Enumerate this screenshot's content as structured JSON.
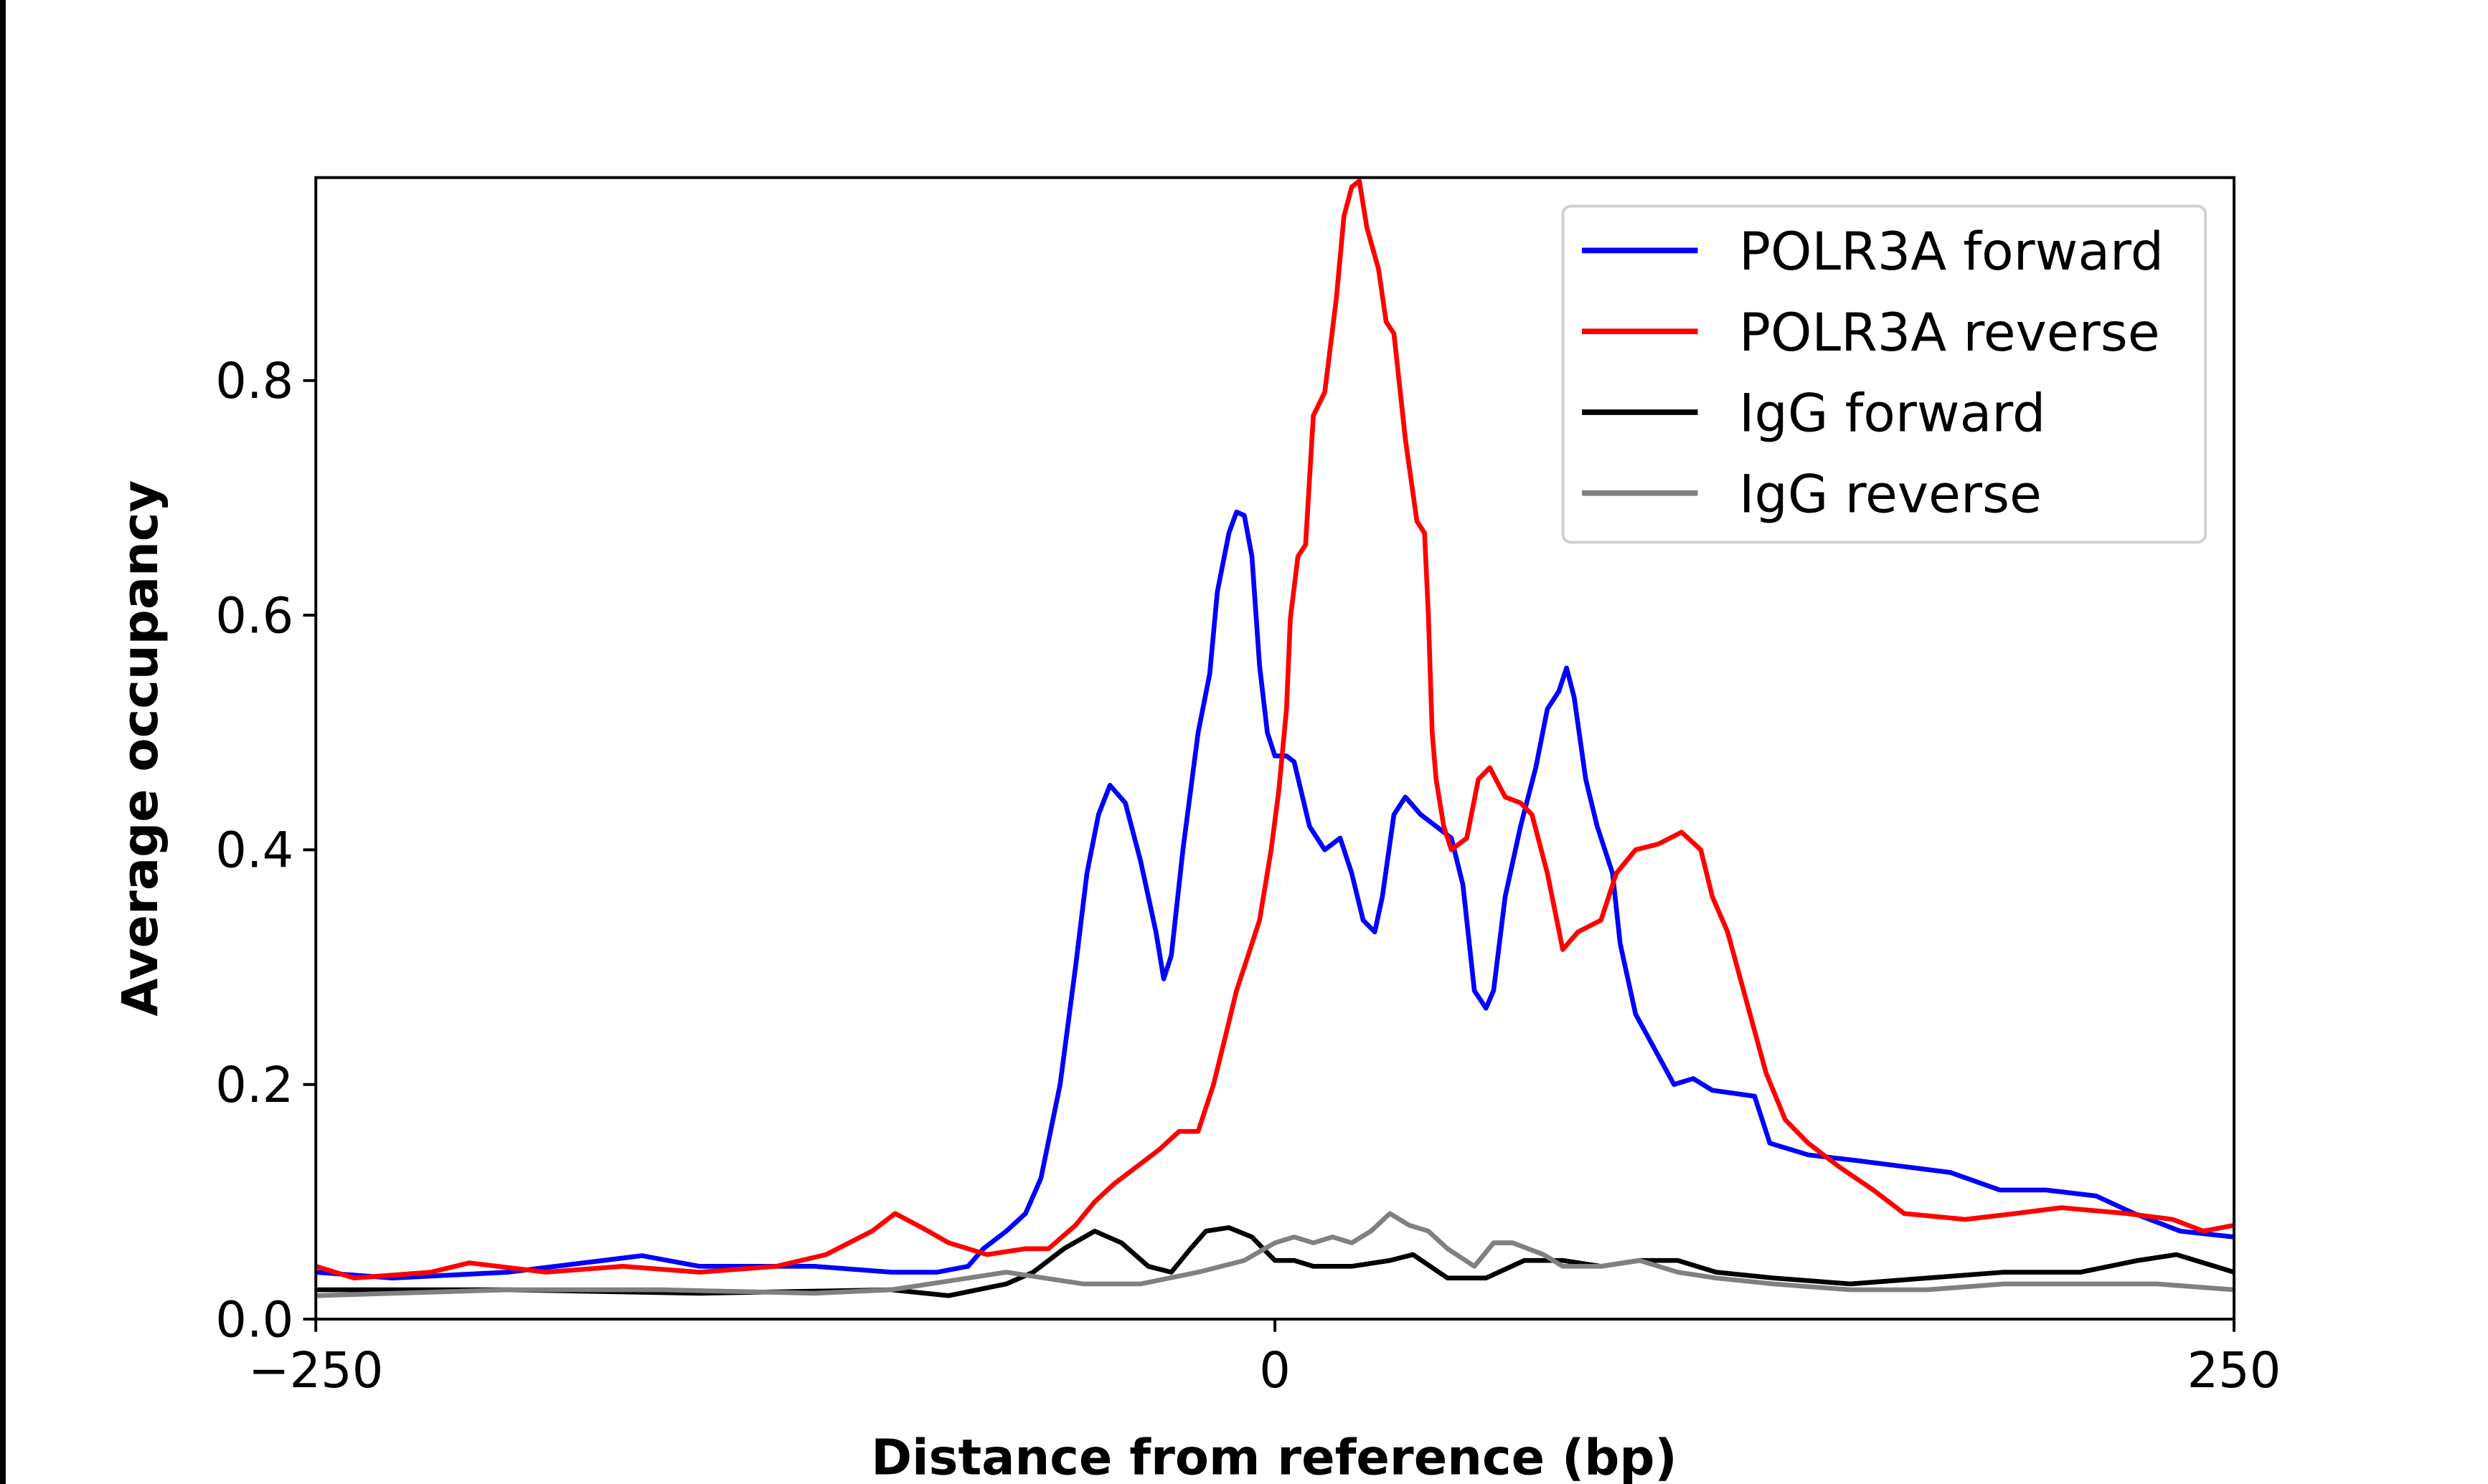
{
  "chart_data": {
    "type": "line",
    "title": "",
    "xlabel": "Distance from reference (bp)",
    "ylabel": "Average occupancy",
    "xlim": [
      -250,
      250
    ],
    "ylim": [
      0,
      0.973
    ],
    "xticks": [
      -250,
      0,
      250
    ],
    "xtick_labels": [
      "−250",
      "0",
      "250"
    ],
    "yticks": [
      0.0,
      0.2,
      0.4,
      0.6,
      0.8
    ],
    "ytick_labels": [
      "0.0",
      "0.2",
      "0.4",
      "0.6",
      "0.8"
    ],
    "grid": false,
    "legend_position": "top-right",
    "series": [
      {
        "name": "POLR3A forward",
        "color": "#0000ff",
        "x": [
          -250,
          -230,
          -200,
          -165,
          -150,
          -120,
          -100,
          -88,
          -80,
          -76,
          -70,
          -65,
          -61,
          -56,
          -52,
          -49,
          -46,
          -43,
          -39,
          -35,
          -31,
          -29,
          -27,
          -24,
          -20,
          -17,
          -15,
          -12,
          -10,
          -8,
          -6,
          -4,
          -2,
          0,
          3,
          5,
          9,
          13,
          17,
          20,
          23,
          26,
          28,
          31,
          34,
          38,
          42,
          46,
          49,
          52,
          55,
          57,
          60,
          64,
          68,
          71,
          74,
          76,
          78,
          81,
          84,
          88,
          90,
          94,
          99,
          104,
          109,
          114,
          125,
          129,
          139,
          152,
          164,
          176,
          189,
          201,
          214,
          224,
          236,
          250
        ],
        "y": [
          0.04,
          0.035,
          0.04,
          0.054,
          0.045,
          0.045,
          0.04,
          0.04,
          0.045,
          0.06,
          0.075,
          0.09,
          0.12,
          0.2,
          0.3,
          0.38,
          0.43,
          0.455,
          0.44,
          0.39,
          0.33,
          0.29,
          0.31,
          0.4,
          0.5,
          0.55,
          0.62,
          0.67,
          0.688,
          0.685,
          0.65,
          0.557,
          0.5,
          0.48,
          0.48,
          0.475,
          0.42,
          0.4,
          0.41,
          0.38,
          0.34,
          0.33,
          0.36,
          0.43,
          0.445,
          0.43,
          0.42,
          0.41,
          0.37,
          0.28,
          0.265,
          0.28,
          0.36,
          0.42,
          0.47,
          0.52,
          0.535,
          0.555,
          0.53,
          0.46,
          0.42,
          0.38,
          0.32,
          0.26,
          0.23,
          0.2,
          0.205,
          0.195,
          0.19,
          0.15,
          0.14,
          0.135,
          0.13,
          0.125,
          0.11,
          0.11,
          0.105,
          0.09,
          0.075,
          0.07
        ]
      },
      {
        "name": "POLR3A reverse",
        "color": "#ff0000",
        "x": [
          -250,
          -240,
          -220,
          -210,
          -190,
          -170,
          -150,
          -130,
          -117,
          -105,
          -99,
          -92,
          -85,
          -75,
          -65,
          -59,
          -52,
          -47,
          -42,
          -36,
          -30,
          -25,
          -20,
          -16,
          -13,
          -10,
          -7,
          -4,
          -1,
          1,
          3,
          4,
          6,
          8,
          10,
          13,
          16,
          18,
          20,
          22,
          24,
          27,
          29,
          31,
          34,
          37,
          39,
          40,
          41,
          42,
          44,
          46,
          50,
          53,
          56,
          60,
          64,
          67,
          71,
          75,
          79,
          85,
          89,
          94,
          100,
          106,
          111,
          114,
          118,
          123,
          128,
          133,
          139,
          147,
          156,
          164,
          180,
          193,
          205,
          222,
          234,
          242,
          250
        ],
        "y": [
          0.045,
          0.035,
          0.04,
          0.048,
          0.04,
          0.045,
          0.04,
          0.045,
          0.055,
          0.075,
          0.09,
          0.078,
          0.065,
          0.055,
          0.06,
          0.06,
          0.08,
          0.1,
          0.115,
          0.13,
          0.145,
          0.16,
          0.16,
          0.2,
          0.24,
          0.28,
          0.31,
          0.34,
          0.4,
          0.45,
          0.52,
          0.597,
          0.65,
          0.66,
          0.77,
          0.79,
          0.87,
          0.94,
          0.965,
          0.97,
          0.93,
          0.895,
          0.85,
          0.84,
          0.75,
          0.68,
          0.67,
          0.6,
          0.5,
          0.46,
          0.42,
          0.4,
          0.41,
          0.46,
          0.47,
          0.445,
          0.44,
          0.43,
          0.38,
          0.315,
          0.33,
          0.34,
          0.38,
          0.4,
          0.405,
          0.415,
          0.4,
          0.36,
          0.33,
          0.27,
          0.21,
          0.17,
          0.15,
          0.13,
          0.11,
          0.09,
          0.085,
          0.09,
          0.095,
          0.09,
          0.085,
          0.075,
          0.08
        ]
      },
      {
        "name": "IgG forward",
        "color": "#000000",
        "x": [
          -250,
          -200,
          -150,
          -100,
          -85,
          -70,
          -63,
          -55,
          -47,
          -40,
          -33,
          -27,
          -22,
          -18,
          -12,
          -6,
          -3,
          0,
          5,
          10,
          20,
          30,
          36,
          45,
          55,
          65,
          75,
          85,
          95,
          105,
          115,
          130,
          150,
          170,
          190,
          210,
          225,
          235,
          245,
          250
        ],
        "y": [
          0.025,
          0.025,
          0.022,
          0.025,
          0.02,
          0.03,
          0.04,
          0.06,
          0.075,
          0.065,
          0.045,
          0.04,
          0.06,
          0.075,
          0.078,
          0.07,
          0.06,
          0.05,
          0.05,
          0.045,
          0.045,
          0.05,
          0.055,
          0.035,
          0.035,
          0.05,
          0.05,
          0.045,
          0.05,
          0.05,
          0.04,
          0.035,
          0.03,
          0.035,
          0.04,
          0.04,
          0.05,
          0.055,
          0.045,
          0.04
        ]
      },
      {
        "name": "IgG reverse",
        "color": "#808080",
        "x": [
          -250,
          -200,
          -160,
          -120,
          -100,
          -80,
          -70,
          -60,
          -50,
          -35,
          -20,
          -8,
          0,
          5,
          10,
          15,
          20,
          25,
          30,
          35,
          40,
          45,
          52,
          57,
          62,
          70,
          75,
          85,
          95,
          105,
          115,
          130,
          150,
          170,
          190,
          210,
          230,
          250
        ],
        "y": [
          0.02,
          0.025,
          0.025,
          0.022,
          0.025,
          0.035,
          0.04,
          0.035,
          0.03,
          0.03,
          0.04,
          0.05,
          0.065,
          0.07,
          0.065,
          0.07,
          0.065,
          0.075,
          0.09,
          0.08,
          0.075,
          0.06,
          0.045,
          0.065,
          0.065,
          0.055,
          0.045,
          0.045,
          0.05,
          0.04,
          0.035,
          0.03,
          0.025,
          0.025,
          0.03,
          0.03,
          0.03,
          0.025
        ]
      }
    ]
  }
}
